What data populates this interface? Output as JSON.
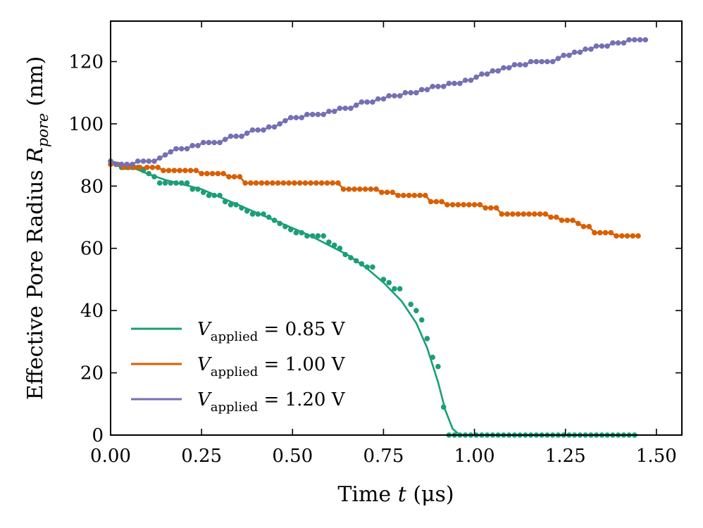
{
  "chart_data": {
    "type": "line",
    "xlabel": {
      "prefix": "Time ",
      "var": "t",
      "unit": " (μs)"
    },
    "ylabel": {
      "prefix": "Effective Pore Radius ",
      "var": "R",
      "sub": "pore",
      "unit": " (nm)"
    },
    "xlim": [
      0.0,
      1.57
    ],
    "ylim": [
      0,
      133
    ],
    "xticks": [
      0.0,
      0.25,
      0.5,
      0.75,
      1.0,
      1.25,
      1.5
    ],
    "xtick_labels": [
      "0.00",
      "0.25",
      "0.50",
      "0.75",
      "1.00",
      "1.25",
      "1.50"
    ],
    "yticks": [
      0,
      20,
      40,
      60,
      80,
      100,
      120
    ],
    "ytick_labels": [
      "0",
      "20",
      "40",
      "60",
      "80",
      "100",
      "120"
    ],
    "legend_position": "lower-left",
    "series": [
      {
        "name": "V_applied = 0.85 V",
        "legend_var": "V",
        "legend_sub": "applied",
        "legend_value": " = 0.85 V",
        "color": "#1b9e77",
        "fit": [
          [
            0.0,
            88
          ],
          [
            0.05,
            86.5
          ],
          [
            0.1,
            84
          ],
          [
            0.15,
            82
          ],
          [
            0.2,
            80.5
          ],
          [
            0.25,
            79
          ],
          [
            0.3,
            76.5
          ],
          [
            0.35,
            74
          ],
          [
            0.4,
            71.5
          ],
          [
            0.45,
            69
          ],
          [
            0.5,
            66.5
          ],
          [
            0.55,
            64
          ],
          [
            0.6,
            61
          ],
          [
            0.65,
            58
          ],
          [
            0.7,
            54
          ],
          [
            0.75,
            49
          ],
          [
            0.8,
            43
          ],
          [
            0.84,
            36
          ],
          [
            0.87,
            28
          ],
          [
            0.9,
            17
          ],
          [
            0.92,
            8
          ],
          [
            0.94,
            2
          ],
          [
            0.96,
            0
          ],
          [
            1.45,
            0
          ]
        ],
        "points": [
          [
            0.0,
            88
          ],
          [
            0.015,
            87
          ],
          [
            0.03,
            86
          ],
          [
            0.045,
            86
          ],
          [
            0.06,
            86
          ],
          [
            0.075,
            86
          ],
          [
            0.09,
            85
          ],
          [
            0.105,
            84
          ],
          [
            0.12,
            83
          ],
          [
            0.135,
            81
          ],
          [
            0.15,
            81
          ],
          [
            0.165,
            81
          ],
          [
            0.18,
            81
          ],
          [
            0.195,
            81
          ],
          [
            0.21,
            81
          ],
          [
            0.225,
            79
          ],
          [
            0.24,
            79
          ],
          [
            0.255,
            78
          ],
          [
            0.27,
            77
          ],
          [
            0.285,
            77
          ],
          [
            0.3,
            77
          ],
          [
            0.315,
            75
          ],
          [
            0.33,
            74
          ],
          [
            0.345,
            74
          ],
          [
            0.36,
            73
          ],
          [
            0.375,
            72
          ],
          [
            0.39,
            71
          ],
          [
            0.405,
            71
          ],
          [
            0.42,
            71
          ],
          [
            0.435,
            70
          ],
          [
            0.45,
            69
          ],
          [
            0.465,
            68
          ],
          [
            0.48,
            67
          ],
          [
            0.495,
            66
          ],
          [
            0.51,
            65
          ],
          [
            0.525,
            65
          ],
          [
            0.54,
            64
          ],
          [
            0.555,
            64
          ],
          [
            0.57,
            64
          ],
          [
            0.585,
            64
          ],
          [
            0.6,
            62
          ],
          [
            0.615,
            61
          ],
          [
            0.63,
            60
          ],
          [
            0.645,
            58
          ],
          [
            0.66,
            57
          ],
          [
            0.675,
            56
          ],
          [
            0.69,
            55
          ],
          [
            0.705,
            54
          ],
          [
            0.72,
            54
          ],
          [
            0.75,
            50
          ],
          [
            0.765,
            49
          ],
          [
            0.78,
            47
          ],
          [
            0.795,
            47
          ],
          [
            0.825,
            42
          ],
          [
            0.84,
            40
          ],
          [
            0.855,
            37
          ],
          [
            0.87,
            31
          ],
          [
            0.885,
            25
          ],
          [
            0.9,
            22
          ],
          [
            0.915,
            9
          ],
          [
            0.93,
            0
          ],
          [
            0.945,
            0
          ],
          [
            0.96,
            0
          ],
          [
            0.975,
            0
          ],
          [
            0.99,
            0
          ],
          [
            1.005,
            0
          ],
          [
            1.02,
            0
          ],
          [
            1.035,
            0
          ],
          [
            1.05,
            0
          ],
          [
            1.065,
            0
          ],
          [
            1.08,
            0
          ],
          [
            1.095,
            0
          ],
          [
            1.11,
            0
          ],
          [
            1.125,
            0
          ],
          [
            1.14,
            0
          ],
          [
            1.155,
            0
          ],
          [
            1.17,
            0
          ],
          [
            1.185,
            0
          ],
          [
            1.2,
            0
          ],
          [
            1.215,
            0
          ],
          [
            1.23,
            0
          ],
          [
            1.245,
            0
          ],
          [
            1.26,
            0
          ],
          [
            1.275,
            0
          ],
          [
            1.29,
            0
          ],
          [
            1.305,
            0
          ],
          [
            1.32,
            0
          ],
          [
            1.335,
            0
          ],
          [
            1.35,
            0
          ],
          [
            1.365,
            0
          ],
          [
            1.38,
            0
          ],
          [
            1.395,
            0
          ],
          [
            1.41,
            0
          ],
          [
            1.425,
            0
          ],
          [
            1.44,
            0
          ]
        ]
      },
      {
        "name": "V_applied = 1.00 V",
        "legend_var": "V",
        "legend_sub": "applied",
        "legend_value": " = 1.00 V",
        "color": "#d95f02",
        "points": [
          [
            0.0,
            87
          ],
          [
            0.02,
            87
          ],
          [
            0.035,
            86
          ],
          [
            0.05,
            86
          ],
          [
            0.065,
            86
          ],
          [
            0.08,
            86
          ],
          [
            0.1,
            86
          ],
          [
            0.115,
            86
          ],
          [
            0.13,
            86
          ],
          [
            0.145,
            85
          ],
          [
            0.16,
            85
          ],
          [
            0.175,
            85
          ],
          [
            0.19,
            85
          ],
          [
            0.205,
            85
          ],
          [
            0.22,
            85
          ],
          [
            0.235,
            85
          ],
          [
            0.25,
            84
          ],
          [
            0.265,
            84
          ],
          [
            0.28,
            84
          ],
          [
            0.295,
            84
          ],
          [
            0.31,
            84
          ],
          [
            0.325,
            83
          ],
          [
            0.34,
            83
          ],
          [
            0.355,
            83
          ],
          [
            0.37,
            81
          ],
          [
            0.385,
            81
          ],
          [
            0.4,
            81
          ],
          [
            0.415,
            81
          ],
          [
            0.43,
            81
          ],
          [
            0.445,
            81
          ],
          [
            0.46,
            81
          ],
          [
            0.475,
            81
          ],
          [
            0.49,
            81
          ],
          [
            0.505,
            81
          ],
          [
            0.52,
            81
          ],
          [
            0.535,
            81
          ],
          [
            0.55,
            81
          ],
          [
            0.565,
            81
          ],
          [
            0.58,
            81
          ],
          [
            0.595,
            81
          ],
          [
            0.61,
            81
          ],
          [
            0.625,
            81
          ],
          [
            0.64,
            79
          ],
          [
            0.655,
            79
          ],
          [
            0.67,
            79
          ],
          [
            0.685,
            79
          ],
          [
            0.7,
            79
          ],
          [
            0.715,
            79
          ],
          [
            0.73,
            79
          ],
          [
            0.745,
            78
          ],
          [
            0.76,
            78
          ],
          [
            0.775,
            78
          ],
          [
            0.79,
            77
          ],
          [
            0.805,
            77
          ],
          [
            0.82,
            77
          ],
          [
            0.835,
            77
          ],
          [
            0.85,
            77
          ],
          [
            0.865,
            77
          ],
          [
            0.88,
            75
          ],
          [
            0.895,
            75
          ],
          [
            0.91,
            75
          ],
          [
            0.925,
            74
          ],
          [
            0.94,
            74
          ],
          [
            0.955,
            74
          ],
          [
            0.97,
            74
          ],
          [
            0.985,
            74
          ],
          [
            1.0,
            74
          ],
          [
            1.015,
            74
          ],
          [
            1.03,
            73
          ],
          [
            1.045,
            73
          ],
          [
            1.06,
            73
          ],
          [
            1.075,
            71
          ],
          [
            1.09,
            71
          ],
          [
            1.105,
            71
          ],
          [
            1.12,
            71
          ],
          [
            1.135,
            71
          ],
          [
            1.15,
            71
          ],
          [
            1.165,
            71
          ],
          [
            1.18,
            71
          ],
          [
            1.195,
            71
          ],
          [
            1.21,
            70
          ],
          [
            1.225,
            70
          ],
          [
            1.24,
            69
          ],
          [
            1.255,
            69
          ],
          [
            1.27,
            69
          ],
          [
            1.285,
            68
          ],
          [
            1.3,
            67
          ],
          [
            1.315,
            67
          ],
          [
            1.33,
            65
          ],
          [
            1.345,
            65
          ],
          [
            1.36,
            65
          ],
          [
            1.375,
            65
          ],
          [
            1.39,
            64
          ],
          [
            1.405,
            64
          ],
          [
            1.42,
            64
          ],
          [
            1.435,
            64
          ],
          [
            1.45,
            64
          ]
        ]
      },
      {
        "name": "V_applied = 1.20 V",
        "legend_var": "V",
        "legend_sub": "applied",
        "legend_value": " = 1.20 V",
        "color": "#7570b3",
        "points": [
          [
            0.0,
            88
          ],
          [
            0.015,
            87
          ],
          [
            0.03,
            87
          ],
          [
            0.045,
            87
          ],
          [
            0.06,
            87
          ],
          [
            0.075,
            88
          ],
          [
            0.09,
            88
          ],
          [
            0.105,
            88
          ],
          [
            0.12,
            88
          ],
          [
            0.135,
            89
          ],
          [
            0.15,
            90
          ],
          [
            0.165,
            91
          ],
          [
            0.18,
            92
          ],
          [
            0.195,
            92
          ],
          [
            0.21,
            92
          ],
          [
            0.225,
            93
          ],
          [
            0.24,
            93
          ],
          [
            0.255,
            94
          ],
          [
            0.27,
            94
          ],
          [
            0.285,
            94
          ],
          [
            0.3,
            94
          ],
          [
            0.315,
            95
          ],
          [
            0.33,
            96
          ],
          [
            0.345,
            96
          ],
          [
            0.36,
            96
          ],
          [
            0.375,
            97
          ],
          [
            0.39,
            98
          ],
          [
            0.405,
            98
          ],
          [
            0.42,
            98
          ],
          [
            0.435,
            99
          ],
          [
            0.45,
            99
          ],
          [
            0.465,
            100
          ],
          [
            0.48,
            101
          ],
          [
            0.495,
            102
          ],
          [
            0.51,
            102
          ],
          [
            0.525,
            102
          ],
          [
            0.54,
            103
          ],
          [
            0.555,
            103
          ],
          [
            0.57,
            103
          ],
          [
            0.585,
            103
          ],
          [
            0.6,
            104
          ],
          [
            0.615,
            104
          ],
          [
            0.63,
            105
          ],
          [
            0.645,
            105
          ],
          [
            0.66,
            105
          ],
          [
            0.675,
            106
          ],
          [
            0.69,
            107
          ],
          [
            0.705,
            107
          ],
          [
            0.72,
            107
          ],
          [
            0.735,
            108
          ],
          [
            0.75,
            108
          ],
          [
            0.765,
            109
          ],
          [
            0.78,
            109
          ],
          [
            0.795,
            109
          ],
          [
            0.81,
            110
          ],
          [
            0.825,
            110
          ],
          [
            0.84,
            110
          ],
          [
            0.855,
            111
          ],
          [
            0.87,
            111
          ],
          [
            0.885,
            112
          ],
          [
            0.9,
            112
          ],
          [
            0.915,
            112
          ],
          [
            0.93,
            113
          ],
          [
            0.945,
            113
          ],
          [
            0.96,
            113
          ],
          [
            0.975,
            114
          ],
          [
            0.99,
            114
          ],
          [
            1.005,
            115
          ],
          [
            1.02,
            116
          ],
          [
            1.035,
            116
          ],
          [
            1.05,
            117
          ],
          [
            1.065,
            117
          ],
          [
            1.08,
            118
          ],
          [
            1.095,
            118
          ],
          [
            1.11,
            119
          ],
          [
            1.125,
            119
          ],
          [
            1.14,
            119
          ],
          [
            1.155,
            120
          ],
          [
            1.17,
            120
          ],
          [
            1.185,
            120
          ],
          [
            1.2,
            120
          ],
          [
            1.215,
            120
          ],
          [
            1.23,
            121
          ],
          [
            1.245,
            122
          ],
          [
            1.26,
            122
          ],
          [
            1.275,
            123
          ],
          [
            1.29,
            123
          ],
          [
            1.305,
            124
          ],
          [
            1.32,
            124
          ],
          [
            1.335,
            125
          ],
          [
            1.35,
            125
          ],
          [
            1.365,
            125
          ],
          [
            1.38,
            126
          ],
          [
            1.395,
            126
          ],
          [
            1.41,
            126
          ],
          [
            1.425,
            127
          ],
          [
            1.44,
            127
          ],
          [
            1.455,
            127
          ],
          [
            1.47,
            127
          ]
        ]
      }
    ]
  }
}
